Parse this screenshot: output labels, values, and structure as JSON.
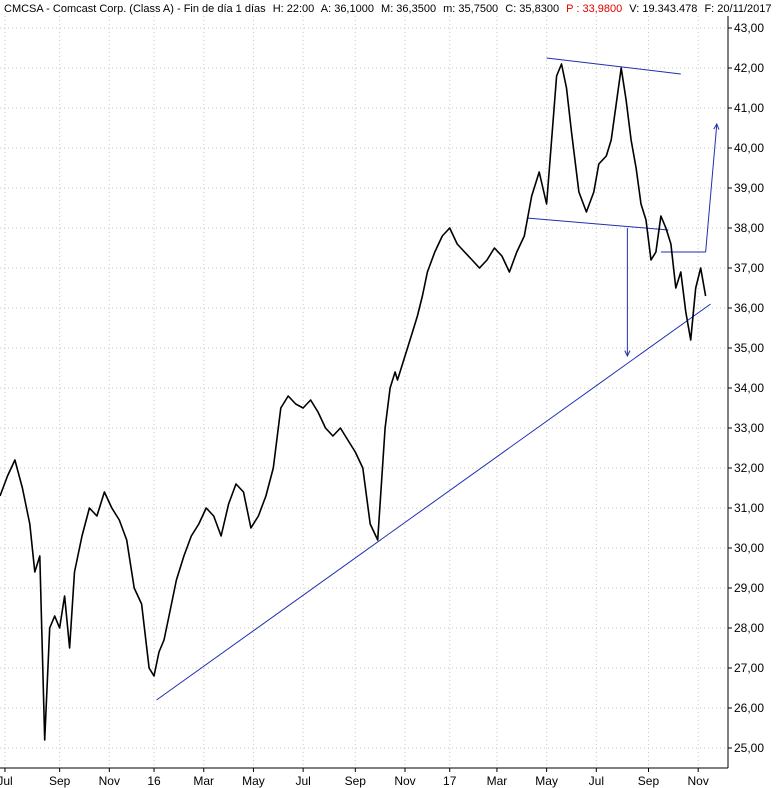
{
  "header": {
    "prefix": "CMCSA - Comcast Corp. (Class A) - Fin de día 1 días",
    "high": "H: 22:00",
    "ask": "A: 36,1000",
    "max": "M: 36,3500",
    "min": "m: 35,7500",
    "close": "C: 35,8300",
    "p": "P : 33,9800",
    "volume": "V: 19.343.478",
    "date": "F: 20/11/2017"
  },
  "chart_data": {
    "type": "line",
    "title": "CMCSA - Comcast Corp. (Class A) - Fin de día 1 días",
    "ylim": [
      24.5,
      43.3
    ],
    "xlim": [
      0,
      29.3
    ],
    "y_ticks": [
      "25,00",
      "26,00",
      "27,00",
      "28,00",
      "29,00",
      "30,00",
      "31,00",
      "32,00",
      "33,00",
      "34,00",
      "35,00",
      "36,00",
      "37,00",
      "38,00",
      "39,00",
      "40,00",
      "41,00",
      "42,00",
      "43,00"
    ],
    "y_tick_values": [
      25,
      26,
      27,
      28,
      29,
      30,
      31,
      32,
      33,
      34,
      35,
      36,
      37,
      38,
      39,
      40,
      41,
      42,
      43
    ],
    "x_ticks": [
      {
        "label": "Jul",
        "x": 0.2
      },
      {
        "label": "Sep",
        "x": 2.4
      },
      {
        "label": "Nov",
        "x": 4.4
      },
      {
        "label": "16",
        "x": 6.2
      },
      {
        "label": "Mar",
        "x": 8.2
      },
      {
        "label": "May",
        "x": 10.2
      },
      {
        "label": "Jul",
        "x": 12.2
      },
      {
        "label": "Sep",
        "x": 14.3
      },
      {
        "label": "Nov",
        "x": 16.3
      },
      {
        "label": "17",
        "x": 18.1
      },
      {
        "label": "Mar",
        "x": 20.0
      },
      {
        "label": "May",
        "x": 22.0
      },
      {
        "label": "Jul",
        "x": 24.0
      },
      {
        "label": "Sep",
        "x": 26.1
      },
      {
        "label": "Nov",
        "x": 28.1
      }
    ],
    "price_series": {
      "name": "CMCSA",
      "x": [
        0.0,
        0.3,
        0.6,
        0.9,
        1.2,
        1.4,
        1.6,
        1.8,
        2.0,
        2.2,
        2.4,
        2.6,
        2.8,
        3.0,
        3.3,
        3.6,
        3.9,
        4.2,
        4.5,
        4.8,
        5.1,
        5.4,
        5.7,
        6.0,
        6.2,
        6.4,
        6.6,
        6.8,
        7.1,
        7.4,
        7.7,
        8.0,
        8.3,
        8.6,
        8.9,
        9.2,
        9.5,
        9.8,
        10.1,
        10.4,
        10.7,
        11.0,
        11.3,
        11.6,
        11.9,
        12.2,
        12.5,
        12.8,
        13.1,
        13.4,
        13.7,
        14.0,
        14.3,
        14.6,
        14.9,
        15.2,
        15.5,
        15.7,
        15.9,
        16.0,
        16.2,
        16.4,
        16.6,
        16.8,
        17.0,
        17.2,
        17.5,
        17.8,
        18.1,
        18.4,
        18.7,
        19.0,
        19.3,
        19.6,
        19.9,
        20.2,
        20.5,
        20.8,
        21.1,
        21.4,
        21.7,
        22.0,
        22.2,
        22.4,
        22.6,
        22.8,
        23.0,
        23.3,
        23.6,
        23.9,
        24.1,
        24.4,
        24.6,
        24.8,
        25.0,
        25.2,
        25.4,
        25.6,
        25.8,
        26.0,
        26.2,
        26.4,
        26.6,
        26.8,
        27.0,
        27.2,
        27.4,
        27.6,
        27.8,
        28.0,
        28.2,
        28.4
      ],
      "y": [
        31.3,
        31.8,
        32.2,
        31.5,
        30.6,
        29.4,
        29.8,
        25.2,
        28.0,
        28.3,
        28.0,
        28.8,
        27.5,
        29.4,
        30.3,
        31.0,
        30.8,
        31.4,
        31.0,
        30.7,
        30.2,
        29.0,
        28.6,
        27.0,
        26.8,
        27.4,
        27.7,
        28.3,
        29.2,
        29.8,
        30.3,
        30.6,
        31.0,
        30.8,
        30.3,
        31.1,
        31.6,
        31.4,
        30.5,
        30.8,
        31.3,
        32.0,
        33.5,
        33.8,
        33.6,
        33.5,
        33.7,
        33.4,
        33.0,
        32.8,
        33.0,
        32.7,
        32.4,
        32.0,
        30.6,
        30.2,
        33.0,
        34.0,
        34.4,
        34.2,
        34.6,
        35.0,
        35.4,
        35.8,
        36.3,
        36.9,
        37.4,
        37.8,
        38.0,
        37.6,
        37.4,
        37.2,
        37.0,
        37.2,
        37.5,
        37.3,
        36.9,
        37.4,
        37.8,
        38.8,
        39.4,
        38.6,
        40.2,
        41.8,
        42.1,
        41.5,
        40.4,
        38.9,
        38.4,
        38.9,
        39.6,
        39.8,
        40.2,
        41.1,
        42.0,
        41.2,
        40.2,
        39.5,
        38.6,
        38.2,
        37.2,
        37.4,
        38.3,
        38.0,
        37.6,
        36.5,
        36.9,
        35.9,
        35.2,
        36.5,
        37.0,
        36.3
      ]
    },
    "trendlines": [
      {
        "x1": 6.3,
        "y1": 26.2,
        "x2": 28.6,
        "y2": 36.1
      },
      {
        "x1": 22.0,
        "y1": 42.25,
        "x2": 27.4,
        "y2": 41.85
      },
      {
        "x1": 21.2,
        "y1": 38.25,
        "x2": 26.9,
        "y2": 37.95
      },
      {
        "x1": 26.6,
        "y1": 37.4,
        "x2": 28.4,
        "y2": 37.4
      }
    ],
    "measure_arrows": [
      {
        "x1": 25.25,
        "y1": 38.0,
        "x2": 25.25,
        "y2": 34.8
      },
      {
        "x1": 28.4,
        "y1": 37.4,
        "x2": 28.85,
        "y2": 40.6
      }
    ],
    "colors": {
      "price": "#000000",
      "trendline": "#1f2fb0",
      "grid": "#c8c8c8",
      "last_price_marker": "#e00000"
    },
    "grid": true,
    "axis_position": "right"
  }
}
